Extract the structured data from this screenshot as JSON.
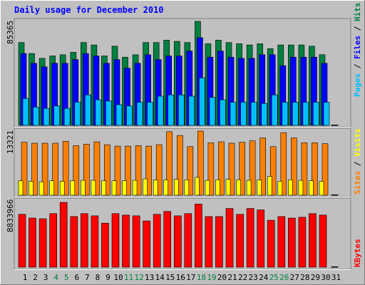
{
  "title": "Daily usage for December 2010",
  "colors": {
    "background": "#c0c0c0",
    "frame": "#ffffff",
    "title": "#0000ff",
    "hits": "#008040",
    "files": "#0000ff",
    "pages": "#00c0ff",
    "visits": "#ffff00",
    "sites": "#ff8000",
    "kbytes": "#ff0000",
    "weekend": "#008040",
    "weekday": "#000000"
  },
  "chart_data": [
    {
      "type": "bar",
      "panel": "hits-files-pages",
      "max_label": "85365",
      "ylim": [
        0,
        85365
      ],
      "series_labels": [
        "Pages",
        "Files",
        "Hits"
      ],
      "categories": [
        "1",
        "2",
        "3",
        "4",
        "5",
        "6",
        "7",
        "8",
        "9",
        "10",
        "11",
        "12",
        "13",
        "14",
        "15",
        "16",
        "17",
        "18",
        "19",
        "20",
        "21",
        "22",
        "23",
        "24",
        "25",
        "26",
        "27",
        "28",
        "29",
        "30",
        "31"
      ],
      "series": [
        {
          "name": "Hits",
          "values": [
            68000,
            59000,
            55000,
            57000,
            58000,
            60000,
            68000,
            66000,
            57000,
            65000,
            56000,
            58000,
            68000,
            68000,
            70000,
            69000,
            68000,
            85365,
            67000,
            70000,
            68000,
            67000,
            66000,
            67000,
            63000,
            66000,
            66000,
            66000,
            65000,
            58000,
            0
          ]
        },
        {
          "name": "Files",
          "values": [
            59000,
            51000,
            48000,
            51000,
            51000,
            54000,
            59000,
            57000,
            51000,
            54000,
            47000,
            51000,
            58000,
            54000,
            57000,
            57000,
            61000,
            72000,
            56000,
            61000,
            56000,
            55000,
            55000,
            58000,
            58000,
            49000,
            56000,
            56000,
            56000,
            51000,
            0
          ]
        },
        {
          "name": "Pages",
          "values": [
            22000,
            15000,
            14000,
            16000,
            14000,
            19000,
            25000,
            21000,
            20000,
            17000,
            16000,
            19000,
            19000,
            24000,
            25000,
            25000,
            24000,
            39000,
            23000,
            21000,
            19000,
            19000,
            19000,
            18000,
            25000,
            19000,
            19000,
            19000,
            19000,
            19000,
            0
          ]
        }
      ]
    },
    {
      "type": "bar",
      "panel": "visits-sites",
      "max_label": "13321",
      "ylim": [
        0,
        13321
      ],
      "series_labels": [
        "Sites",
        "Visits"
      ],
      "categories": [
        "1",
        "2",
        "3",
        "4",
        "5",
        "6",
        "7",
        "8",
        "9",
        "10",
        "11",
        "12",
        "13",
        "14",
        "15",
        "16",
        "17",
        "18",
        "19",
        "20",
        "21",
        "22",
        "23",
        "24",
        "25",
        "26",
        "27",
        "28",
        "29",
        "30",
        "31"
      ],
      "series": [
        {
          "name": "Sites",
          "values": [
            11000,
            10800,
            10800,
            10800,
            11200,
            10300,
            10600,
            11100,
            10500,
            10200,
            10200,
            10300,
            10200,
            10500,
            13200,
            12400,
            10100,
            13321,
            10900,
            11100,
            10800,
            11000,
            11300,
            11900,
            10100,
            13000,
            11900,
            10900,
            10900,
            10700,
            0
          ]
        },
        {
          "name": "Visits",
          "values": [
            3000,
            2900,
            2800,
            3000,
            2900,
            3000,
            3100,
            3100,
            3000,
            3000,
            3000,
            3100,
            3400,
            3200,
            3200,
            3300,
            3200,
            3700,
            3100,
            3200,
            3300,
            3200,
            3100,
            3200,
            3900,
            2900,
            3200,
            3100,
            3000,
            2900,
            0
          ]
        }
      ]
    },
    {
      "type": "bar",
      "panel": "kbytes",
      "max_label": "8833966",
      "ylim": [
        0,
        8833966
      ],
      "series_labels": [
        "KBytes"
      ],
      "categories": [
        "1",
        "2",
        "3",
        "4",
        "5",
        "6",
        "7",
        "8",
        "9",
        "10",
        "11",
        "12",
        "13",
        "14",
        "15",
        "16",
        "17",
        "18",
        "19",
        "20",
        "21",
        "22",
        "23",
        "24",
        "25",
        "26",
        "27",
        "28",
        "29",
        "30",
        "31"
      ],
      "series": [
        {
          "name": "KBytes",
          "values": [
            7200,
            6700,
            6600,
            7300,
            8833,
            6900,
            7300,
            7000,
            6000,
            7300,
            7100,
            7000,
            6300,
            7200,
            7600,
            7000,
            7300,
            8600,
            6900,
            6900,
            8000,
            7200,
            8000,
            7800,
            6400,
            6900,
            6700,
            6800,
            7300,
            7100,
            0
          ]
        }
      ]
    }
  ],
  "weekend_days": [
    4,
    5,
    11,
    12,
    18,
    19,
    25,
    26
  ]
}
